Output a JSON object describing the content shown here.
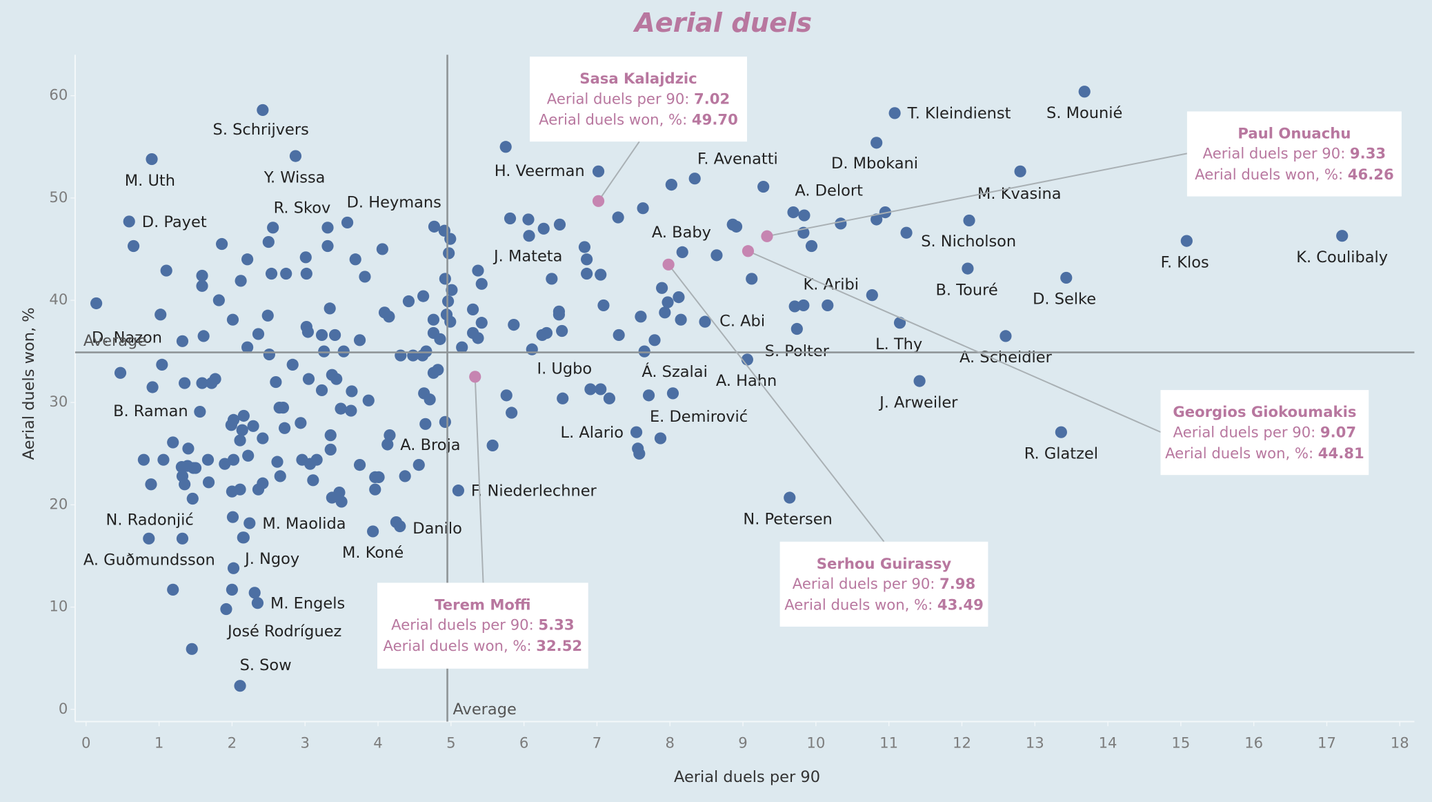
{
  "chart_data": {
    "type": "scatter",
    "title": "Aerial duels",
    "x_label": "Aerial duels per 90",
    "y_label": "Aerial duels won, %",
    "xlim": [
      -0.15,
      18.2
    ],
    "ylim": [
      -1.2,
      64
    ],
    "xticks": [
      0,
      1,
      2,
      3,
      4,
      5,
      6,
      7,
      8,
      9,
      10,
      11,
      12,
      13,
      14,
      15,
      16,
      17,
      18
    ],
    "yticks": [
      0,
      10,
      20,
      30,
      40,
      50,
      60
    ],
    "average": {
      "label": "Average",
      "x": 4.95,
      "y": 34.9
    },
    "color": "#4c6fa3",
    "highlight_color": "#c685b1",
    "tooltip_fields": [
      "Aerial duels per 90:",
      "Aerial duels won, %:"
    ],
    "highlights": [
      {
        "name": "Sasa Kalajdzic",
        "x": 7.02,
        "y": 49.7,
        "value_labels": [
          "7.02",
          "49.70"
        ]
      },
      {
        "name": "Paul Onuachu",
        "x": 9.33,
        "y": 46.26,
        "value_labels": [
          "9.33",
          "46.26"
        ]
      },
      {
        "name": "Georgios Giokoumakis",
        "x": 9.07,
        "y": 44.81,
        "value_labels": [
          "9.07",
          "44.81"
        ]
      },
      {
        "name": "Serhou Guirassy",
        "x": 7.98,
        "y": 43.49,
        "value_labels": [
          "7.98",
          "43.49"
        ]
      },
      {
        "name": "Terem Moffi",
        "x": 5.33,
        "y": 32.52,
        "value_labels": [
          "5.33",
          "32.52"
        ]
      }
    ],
    "points": {
      "labels": [
        "S. Mounié",
        "T. Kleindienst",
        "S. Schrijvers",
        "M. Uth",
        "Y. Wissa",
        "D. Mbokani",
        "F. Avenatti",
        "H. Veerman",
        "M. Kvasina",
        "A. Delort",
        "D. Payet",
        "R. Skov",
        "D. Heymans",
        "J. Mateta",
        "A. Baby",
        "S. Nicholson",
        "F. Klos",
        "K. Coulibaly",
        "B. Touré",
        "D. Selke",
        "K. Aribi",
        "C. Abi",
        "L. Thy",
        "S. Polter",
        "A. Scheidler",
        "D. Nazon",
        "B. Raman",
        "I. Ugbo",
        "Á. Szalai",
        "A. Hahn",
        "J. Arweiler",
        "E. Demirović",
        "L. Alario",
        "R. Glatzel",
        "A. Broja",
        "F. Niederlechner",
        "N. Radonjić",
        "M. Maolida",
        "Danilo",
        "M. Koné",
        "N. Petersen",
        "A. Guðmundsson",
        "J. Ngoy",
        "M. Engels",
        "José Rodríguez",
        "S. Sow",
        null,
        null,
        null,
        null,
        null,
        null,
        null,
        null,
        null,
        null,
        null,
        null,
        null,
        null,
        null,
        null,
        null,
        null,
        null,
        null,
        null,
        null,
        null,
        null,
        null,
        null,
        null,
        null,
        null,
        null,
        null,
        null,
        null,
        null,
        null,
        null,
        null,
        null,
        null,
        null,
        null,
        null,
        null,
        null,
        null,
        null,
        null,
        null,
        null,
        null,
        null,
        null,
        null,
        null,
        null,
        null,
        null,
        null,
        null,
        null,
        null,
        null,
        null,
        null,
        null,
        null,
        null,
        null,
        null,
        null,
        null,
        null,
        null,
        null,
        null,
        null,
        null,
        null,
        null,
        null,
        null,
        null,
        null,
        null,
        null,
        null,
        null,
        null,
        null,
        null,
        null,
        null,
        null,
        null,
        null,
        null,
        null,
        null,
        null,
        null,
        null,
        null,
        null,
        null,
        null,
        null,
        null,
        null,
        null,
        null,
        null,
        null,
        null,
        null,
        null,
        null,
        null,
        null,
        null,
        null,
        null,
        null,
        null,
        null,
        null,
        null,
        null,
        null,
        null,
        null,
        null,
        null,
        null,
        null,
        null,
        null,
        null,
        null,
        null,
        null,
        null,
        null,
        null,
        null,
        null,
        null,
        null,
        null,
        null,
        null,
        null,
        null,
        null,
        null,
        null,
        null,
        null,
        null
      ],
      "x": [
        13.68,
        11.08,
        2.42,
        0.9,
        2.87,
        10.83,
        8.34,
        7.02,
        12.8,
        9.69,
        0.59,
        3.31,
        4.77,
        6.07,
        8.17,
        11.24,
        15.08,
        17.21,
        12.08,
        13.43,
        10.77,
        8.48,
        11.15,
        9.74,
        12.6,
        0.14,
        1.56,
        6.53,
        8.04,
        9.06,
        11.42,
        7.87,
        7.54,
        13.36,
        4.13,
        5.1,
        0.86,
        2.24,
        4.3,
        3.93,
        9.64,
        1.19,
        2.15,
        2.35,
        1.92,
        2.11,
        0.65,
        1.1,
        1.02,
        0.47,
        0.91,
        1.04,
        1.32,
        1.61,
        1.59,
        1.59,
        1.82,
        1.86,
        2.01,
        2.12,
        2.21,
        2.56,
        2.5,
        2.54,
        2.74,
        3.01,
        3.02,
        3.31,
        3.58,
        3.69,
        3.82,
        4.06,
        3.34,
        3.02,
        3.04,
        3.23,
        3.41,
        3.26,
        3.53,
        3.75,
        2.21,
        2.36,
        2.49,
        2.51,
        2.83,
        2.6,
        3.05,
        3.23,
        3.37,
        3.43,
        3.64,
        3.49,
        3.63,
        3.87,
        2.65,
        2.7,
        2.94,
        2.72,
        1.99,
        2.14,
        2.29,
        2.16,
        2.42,
        2.11,
        1.19,
        0.79,
        1.06,
        0.89,
        1.4,
        1.39,
        1.47,
        1.31,
        1.32,
        1.35,
        1.5,
        1.46,
        1.68,
        1.67,
        1.9,
        2.02,
        2.22,
        2.36,
        2.11,
        2.0,
        2.42,
        2.62,
        2.66,
        2.96,
        3.07,
        3.16,
        3.11,
        3.35,
        3.35,
        3.37,
        3.47,
        3.5,
        3.75,
        3.96,
        4.01,
        3.96,
        4.16,
        4.37,
        4.25,
        2.01,
        2.16,
        2.02,
        2.0,
        2.31,
        1.45,
        1.32,
        2.02,
        1.77,
        1.72,
        1.59,
        1.35,
        4.61,
        4.48,
        4.31,
        4.66,
        4.42,
        4.62,
        4.09,
        4.15,
        4.76,
        4.76,
        4.85,
        4.92,
        4.94,
        4.96,
        5.01,
        4.99,
        4.99,
        4.97,
        4.91,
        5.37,
        5.42,
        5.3,
        5.42,
        5.37,
        5.3,
        5.15,
        4.76,
        4.82,
        4.63,
        4.71,
        4.65,
        4.92,
        4.56,
        5.57,
        5.83,
        5.76,
        5.81,
        5.75,
        6.06,
        6.27,
        6.49,
        6.38,
        5.86,
        6.11,
        6.25,
        6.31,
        6.48,
        6.48,
        6.52,
        6.83,
        6.86,
        6.86,
        7.05,
        7.09,
        6.91,
        7.05,
        7.17,
        7.3,
        7.29,
        7.63,
        7.6,
        7.65,
        7.79,
        7.89,
        7.93,
        7.97,
        8.02,
        8.12,
        8.15,
        7.71,
        7.58,
        7.56,
        8.64,
        8.86,
        8.91,
        9.12,
        9.28,
        9.84,
        9.83,
        9.94,
        9.71,
        9.83,
        10.16,
        10.34,
        10.83,
        10.95,
        12.1
      ],
      "y": [
        60.4,
        58.3,
        58.6,
        53.8,
        54.1,
        55.4,
        51.9,
        52.6,
        52.6,
        48.6,
        47.7,
        47.1,
        47.2,
        46.3,
        44.7,
        46.6,
        45.8,
        46.3,
        43.1,
        42.2,
        40.5,
        37.9,
        37.8,
        37.2,
        36.5,
        39.7,
        29.1,
        30.4,
        30.9,
        34.2,
        32.1,
        26.5,
        27.1,
        27.1,
        25.9,
        21.4,
        16.7,
        18.2,
        17.9,
        17.4,
        20.7,
        11.7,
        16.8,
        10.4,
        9.8,
        2.3,
        45.3,
        42.9,
        38.6,
        32.9,
        31.5,
        33.7,
        36.0,
        36.5,
        42.4,
        41.4,
        40.0,
        45.5,
        38.1,
        41.9,
        44.0,
        47.1,
        45.7,
        42.6,
        42.6,
        44.2,
        42.6,
        45.3,
        47.6,
        44.0,
        42.3,
        45.0,
        39.2,
        37.4,
        36.9,
        36.6,
        36.6,
        35.0,
        35.0,
        36.1,
        35.4,
        36.7,
        38.5,
        34.7,
        33.7,
        32.0,
        32.3,
        31.2,
        32.7,
        32.3,
        31.1,
        29.4,
        29.2,
        30.2,
        29.5,
        29.5,
        28.0,
        27.5,
        27.8,
        27.3,
        27.7,
        28.7,
        26.5,
        26.3,
        26.1,
        24.4,
        24.4,
        22.0,
        25.5,
        23.8,
        23.6,
        23.7,
        22.8,
        22.0,
        23.6,
        20.6,
        22.2,
        24.4,
        24.0,
        24.4,
        24.8,
        21.5,
        21.5,
        21.3,
        22.1,
        24.2,
        22.8,
        24.4,
        24.0,
        24.4,
        22.4,
        25.4,
        26.8,
        20.7,
        21.2,
        20.3,
        23.9,
        22.7,
        22.7,
        21.5,
        26.8,
        22.8,
        18.3,
        18.8,
        16.8,
        13.8,
        11.7,
        11.4,
        5.9,
        16.7,
        28.3,
        32.3,
        31.9,
        31.9,
        31.9,
        34.6,
        34.6,
        34.6,
        35.0,
        39.9,
        40.4,
        38.8,
        38.4,
        38.1,
        36.8,
        36.2,
        42.1,
        38.6,
        39.9,
        41.0,
        37.9,
        46.0,
        44.6,
        46.8,
        42.9,
        41.6,
        39.1,
        37.8,
        36.3,
        36.8,
        35.4,
        32.9,
        33.2,
        30.9,
        30.3,
        27.9,
        28.1,
        23.9,
        25.8,
        29.0,
        30.7,
        48.0,
        55.0,
        47.9,
        47.0,
        47.4,
        42.1,
        37.6,
        35.2,
        36.6,
        36.8,
        38.6,
        38.9,
        37.0,
        45.2,
        44.0,
        42.6,
        42.5,
        39.5,
        31.3,
        31.3,
        30.4,
        36.6,
        48.1,
        49.0,
        38.4,
        35.0,
        36.1,
        41.2,
        38.8,
        39.8,
        51.3,
        40.3,
        38.1,
        30.7,
        25.0,
        25.5,
        44.4,
        47.4,
        47.2,
        42.1,
        51.1,
        48.3,
        46.6,
        45.3,
        39.4,
        39.5,
        39.5,
        47.5,
        47.9,
        48.6,
        47.8
      ]
    }
  }
}
